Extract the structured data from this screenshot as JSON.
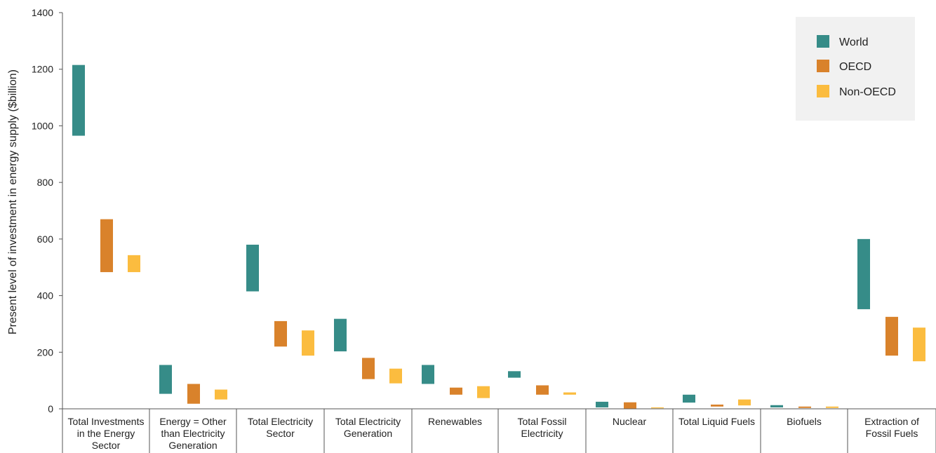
{
  "chart_data": {
    "type": "bar",
    "subtype": "floating-range",
    "title": "",
    "ylabel": "Present level of investment in energy supply ($billion)",
    "xlabel": "",
    "ylim": [
      0,
      1400
    ],
    "yticks": [
      "0",
      "200",
      "400",
      "600",
      "800",
      "1000",
      "1200",
      "1400"
    ],
    "grid": false,
    "legend_position": "top-right",
    "categories": [
      [
        "Total Investments",
        "in the Energy",
        "Sector"
      ],
      [
        "Energy = Other",
        "than Electricity",
        "Generation"
      ],
      [
        "Total Electricity",
        "Sector"
      ],
      [
        "Total Electricity",
        "Generation"
      ],
      [
        "Renewables"
      ],
      [
        "Total Fossil",
        "Electricity"
      ],
      [
        "Nuclear"
      ],
      [
        "Total Liquid Fuels"
      ],
      [
        "Biofuels"
      ],
      [
        "Extraction of",
        "Fossil Fuels"
      ]
    ],
    "series": [
      {
        "name": "World",
        "color": "#368c88",
        "ranges": [
          [
            965,
            1215
          ],
          [
            53,
            155
          ],
          [
            415,
            580
          ],
          [
            203,
            318
          ],
          [
            88,
            155
          ],
          [
            110,
            133
          ],
          [
            5,
            25
          ],
          [
            22,
            50
          ],
          [
            5,
            13
          ],
          [
            352,
            600
          ]
        ]
      },
      {
        "name": "OECD",
        "color": "#d9822b",
        "ranges": [
          [
            483,
            670
          ],
          [
            18,
            88
          ],
          [
            220,
            310
          ],
          [
            105,
            180
          ],
          [
            50,
            75
          ],
          [
            50,
            83
          ],
          [
            1,
            23
          ],
          [
            8,
            15
          ],
          [
            3,
            8
          ],
          [
            188,
            325
          ]
        ]
      },
      {
        "name": "Non-OECD",
        "color": "#fbbc3f",
        "ranges": [
          [
            483,
            543
          ],
          [
            33,
            68
          ],
          [
            188,
            277
          ],
          [
            90,
            142
          ],
          [
            38,
            80
          ],
          [
            50,
            58
          ],
          [
            2,
            5
          ],
          [
            12,
            33
          ],
          [
            3,
            8
          ],
          [
            168,
            287
          ]
        ]
      }
    ]
  }
}
